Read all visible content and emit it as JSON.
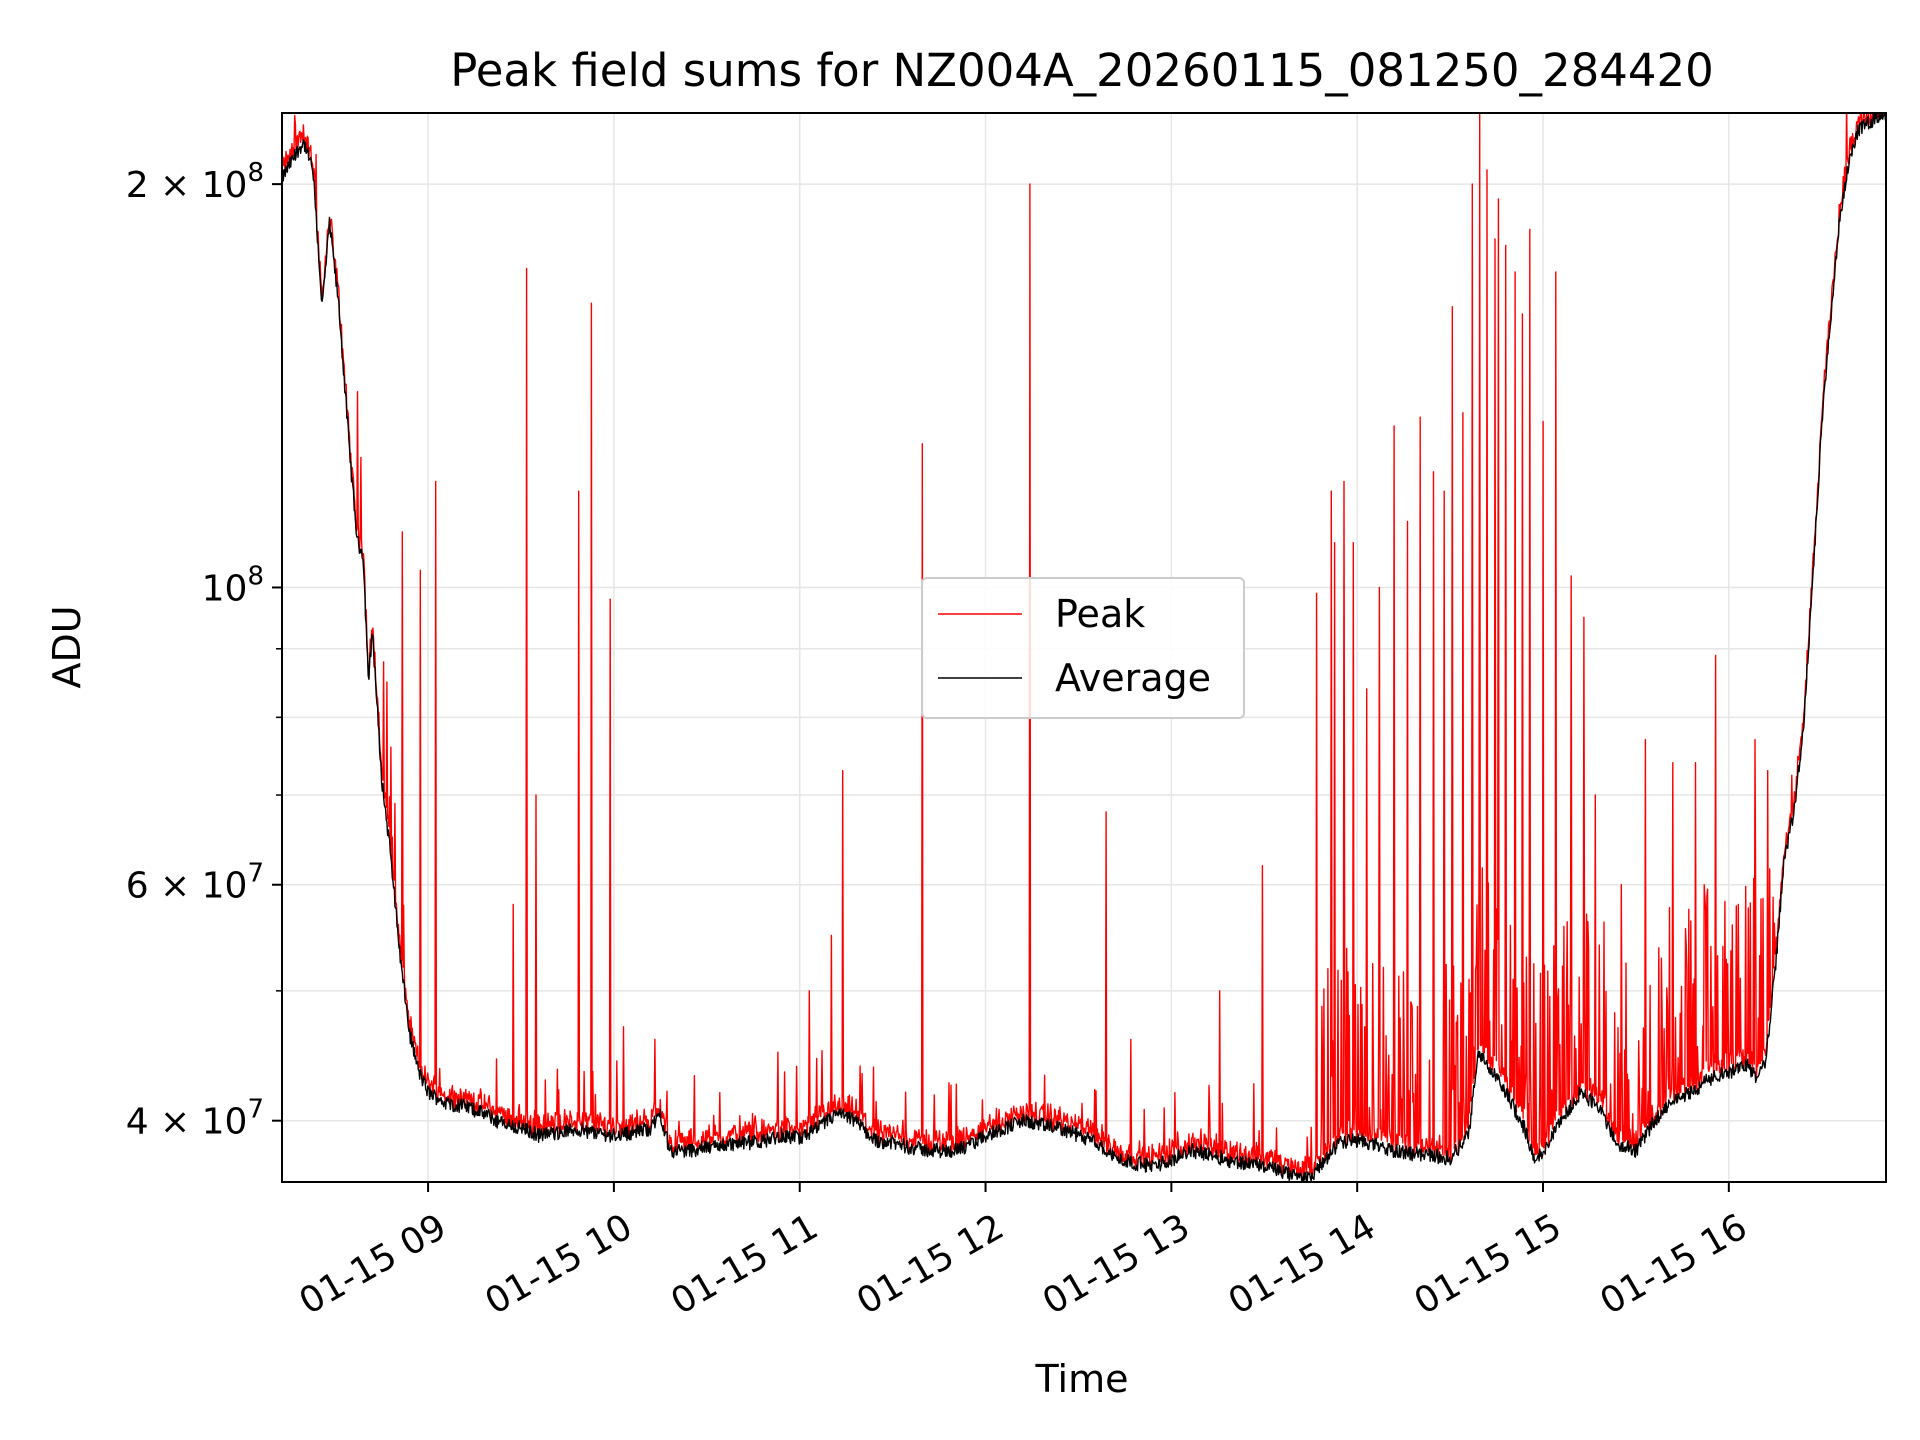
{
  "chart_data": {
    "type": "line",
    "title": "Peak field sums for NZ004A_20260115_081250_284420",
    "xlabel": "Time",
    "ylabel": "ADU",
    "yscale": "log",
    "xlim_hours": [
      8.2139,
      16.8458
    ],
    "ylim": [
      36000000,
      226000000
    ],
    "grid": true,
    "legend_position": "center",
    "x_ticks": [
      {
        "hour": 9,
        "label": "01-15 09"
      },
      {
        "hour": 10,
        "label": "01-15 10"
      },
      {
        "hour": 11,
        "label": "01-15 11"
      },
      {
        "hour": 12,
        "label": "01-15 12"
      },
      {
        "hour": 13,
        "label": "01-15 13"
      },
      {
        "hour": 14,
        "label": "01-15 14"
      },
      {
        "hour": 15,
        "label": "01-15 15"
      },
      {
        "hour": 16,
        "label": "01-15 16"
      }
    ],
    "y_major_ticks": [
      {
        "value": 40000000,
        "mantissa": "4",
        "exponent": "7"
      },
      {
        "value": 60000000,
        "mantissa": "6",
        "exponent": "7"
      },
      {
        "value": 100000000,
        "mantissa": "",
        "exponent": "8"
      },
      {
        "value": 200000000,
        "mantissa": "2",
        "exponent": "8"
      }
    ],
    "y_minor_ticks": [
      50000000,
      70000000,
      80000000,
      90000000
    ],
    "colors": {
      "peak": "#ff0000",
      "average": "#000000",
      "grid": "#e6e6e6"
    },
    "series": [
      {
        "name": "Average",
        "color": "#000000",
        "points": [
          [
            8.2139,
            202000000.0
          ],
          [
            8.3,
            212000000.0
          ],
          [
            8.33,
            215000000.0
          ],
          [
            8.38,
            205000000.0
          ],
          [
            8.43,
            162000000.0
          ],
          [
            8.47,
            187000000.0
          ],
          [
            8.52,
            162000000.0
          ],
          [
            8.58,
            125000000.0
          ],
          [
            8.62,
            108000000.0
          ],
          [
            8.65,
            106000000.0
          ],
          [
            8.68,
            85000000.0
          ],
          [
            8.7,
            93000000.0
          ],
          [
            8.75,
            72000000.0
          ],
          [
            8.8,
            63000000.0
          ],
          [
            8.85,
            53000000.0
          ],
          [
            8.9,
            46500000.0
          ],
          [
            8.95,
            43500000.0
          ],
          [
            9.0,
            42000000.0
          ],
          [
            9.1,
            41200000.0
          ],
          [
            9.2,
            41000000.0
          ],
          [
            9.3,
            40500000.0
          ],
          [
            9.4,
            39800000.0
          ],
          [
            9.5,
            39500000.0
          ],
          [
            9.6,
            39000000.0
          ],
          [
            9.7,
            39200000.0
          ],
          [
            9.8,
            39400000.0
          ],
          [
            9.9,
            39200000.0
          ],
          [
            10.0,
            39000000.0
          ],
          [
            10.1,
            39200000.0
          ],
          [
            10.2,
            39500000.0
          ],
          [
            10.25,
            40500000.0
          ],
          [
            10.3,
            38000000.0
          ],
          [
            10.4,
            38000000.0
          ],
          [
            10.5,
            38200000.0
          ],
          [
            10.6,
            38400000.0
          ],
          [
            10.7,
            38500000.0
          ],
          [
            10.8,
            38600000.0
          ],
          [
            10.9,
            39000000.0
          ],
          [
            11.0,
            38800000.0
          ],
          [
            11.1,
            39500000.0
          ],
          [
            11.2,
            40500000.0
          ],
          [
            11.3,
            40000000.0
          ],
          [
            11.4,
            38700000.0
          ],
          [
            11.5,
            38500000.0
          ],
          [
            11.6,
            38200000.0
          ],
          [
            11.7,
            38000000.0
          ],
          [
            11.8,
            38000000.0
          ],
          [
            11.9,
            38200000.0
          ],
          [
            12.0,
            39000000.0
          ],
          [
            12.1,
            39500000.0
          ],
          [
            12.2,
            40000000.0
          ],
          [
            12.3,
            39700000.0
          ],
          [
            12.4,
            39500000.0
          ],
          [
            12.5,
            39000000.0
          ],
          [
            12.6,
            38500000.0
          ],
          [
            12.7,
            37500000.0
          ],
          [
            12.8,
            37200000.0
          ],
          [
            12.9,
            37000000.0
          ],
          [
            13.0,
            37400000.0
          ],
          [
            13.1,
            38000000.0
          ],
          [
            13.2,
            37800000.0
          ],
          [
            13.3,
            37400000.0
          ],
          [
            13.4,
            37200000.0
          ],
          [
            13.5,
            37000000.0
          ],
          [
            13.6,
            36600000.0
          ],
          [
            13.7,
            36200000.0
          ],
          [
            13.75,
            36200000.0
          ],
          [
            13.8,
            37000000.0
          ],
          [
            13.9,
            38500000.0
          ],
          [
            14.0,
            38700000.0
          ],
          [
            14.1,
            38400000.0
          ],
          [
            14.2,
            38000000.0
          ],
          [
            14.3,
            37800000.0
          ],
          [
            14.4,
            37700000.0
          ],
          [
            14.5,
            37500000.0
          ],
          [
            14.6,
            39000000.0
          ],
          [
            14.65,
            45000000.0
          ],
          [
            14.7,
            44000000.0
          ],
          [
            14.8,
            42000000.0
          ],
          [
            14.9,
            39500000.0
          ],
          [
            14.95,
            37500000.0
          ],
          [
            15.0,
            38000000.0
          ],
          [
            15.1,
            40000000.0
          ],
          [
            15.2,
            42000000.0
          ],
          [
            15.3,
            41000000.0
          ],
          [
            15.4,
            38500000.0
          ],
          [
            15.5,
            38000000.0
          ],
          [
            15.6,
            40000000.0
          ],
          [
            15.7,
            41500000.0
          ],
          [
            15.8,
            42000000.0
          ],
          [
            15.9,
            43000000.0
          ],
          [
            16.0,
            43500000.0
          ],
          [
            16.1,
            44000000.0
          ],
          [
            16.15,
            43000000.0
          ],
          [
            16.2,
            44500000.0
          ],
          [
            16.25,
            52000000.0
          ],
          [
            16.3,
            63000000.0
          ],
          [
            16.35,
            68000000.0
          ],
          [
            16.4,
            78000000.0
          ],
          [
            16.45,
            100000000.0
          ],
          [
            16.5,
            132000000.0
          ],
          [
            16.55,
            160000000.0
          ],
          [
            16.6,
            190000000.0
          ],
          [
            16.65,
            210000000.0
          ],
          [
            16.7,
            220000000.0
          ],
          [
            16.75,
            222000000.0
          ],
          [
            16.8,
            225000000.0
          ],
          [
            16.8458,
            226000000.0
          ]
        ]
      },
      {
        "name": "Peak",
        "color": "#ff0000",
        "spikes": [
          [
            8.42,
            155000000.0
          ],
          [
            8.62,
            140000000.0
          ],
          [
            8.64,
            125000000.0
          ],
          [
            8.73,
            73000000.0
          ],
          [
            8.76,
            88000000.0
          ],
          [
            8.78,
            85000000.0
          ],
          [
            8.8,
            76000000.0
          ],
          [
            8.82,
            69000000.0
          ],
          [
            8.86,
            110000000.0
          ],
          [
            8.96,
            103000000.0
          ],
          [
            9.04,
            120000000.0
          ],
          [
            9.46,
            58000000.0
          ],
          [
            9.53,
            173000000.0
          ],
          [
            9.58,
            70000000.0
          ],
          [
            9.81,
            118000000.0
          ],
          [
            9.88,
            163000000.0
          ],
          [
            9.98,
            98000000.0
          ],
          [
            10.05,
            47000000.0
          ],
          [
            10.22,
            46000000.0
          ],
          [
            10.92,
            43500000.0
          ],
          [
            11.05,
            50000000.0
          ],
          [
            11.17,
            55000000.0
          ],
          [
            11.23,
            73000000.0
          ],
          [
            11.66,
            128000000.0
          ],
          [
            12.24,
            200000000.0
          ],
          [
            12.65,
            68000000.0
          ],
          [
            12.78,
            46000000.0
          ],
          [
            13.26,
            50000000.0
          ],
          [
            13.49,
            62000000.0
          ],
          [
            13.78,
            99000000.0
          ],
          [
            13.86,
            118000000.0
          ],
          [
            13.88,
            108000000.0
          ],
          [
            13.93,
            120000000.0
          ],
          [
            13.98,
            108000000.0
          ],
          [
            14.05,
            84000000.0
          ],
          [
            14.12,
            100000000.0
          ],
          [
            14.2,
            132000000.0
          ],
          [
            14.27,
            112000000.0
          ],
          [
            14.34,
            134000000.0
          ],
          [
            14.41,
            122000000.0
          ],
          [
            14.47,
            118000000.0
          ],
          [
            14.51,
            162000000.0
          ],
          [
            14.57,
            135000000.0
          ],
          [
            14.62,
            200000000.0
          ],
          [
            14.66,
            226000000.0
          ],
          [
            14.7,
            205000000.0
          ],
          [
            14.74,
            182000000.0
          ],
          [
            14.76,
            195000000.0
          ],
          [
            14.8,
            180000000.0
          ],
          [
            14.85,
            172000000.0
          ],
          [
            14.89,
            160000000.0
          ],
          [
            14.93,
            185000000.0
          ],
          [
            15.0,
            133000000.0
          ],
          [
            15.07,
            172000000.0
          ],
          [
            15.15,
            102000000.0
          ],
          [
            15.22,
            95000000.0
          ],
          [
            15.28,
            70000000.0
          ],
          [
            15.42,
            60000000.0
          ],
          [
            15.55,
            77000000.0
          ],
          [
            15.7,
            74000000.0
          ],
          [
            15.82,
            74000000.0
          ],
          [
            15.93,
            89000000.0
          ],
          [
            16.05,
            58000000.0
          ],
          [
            16.14,
            77000000.0
          ],
          [
            16.21,
            73000000.0
          ],
          [
            16.27,
            55000000.0
          ]
        ]
      }
    ]
  }
}
